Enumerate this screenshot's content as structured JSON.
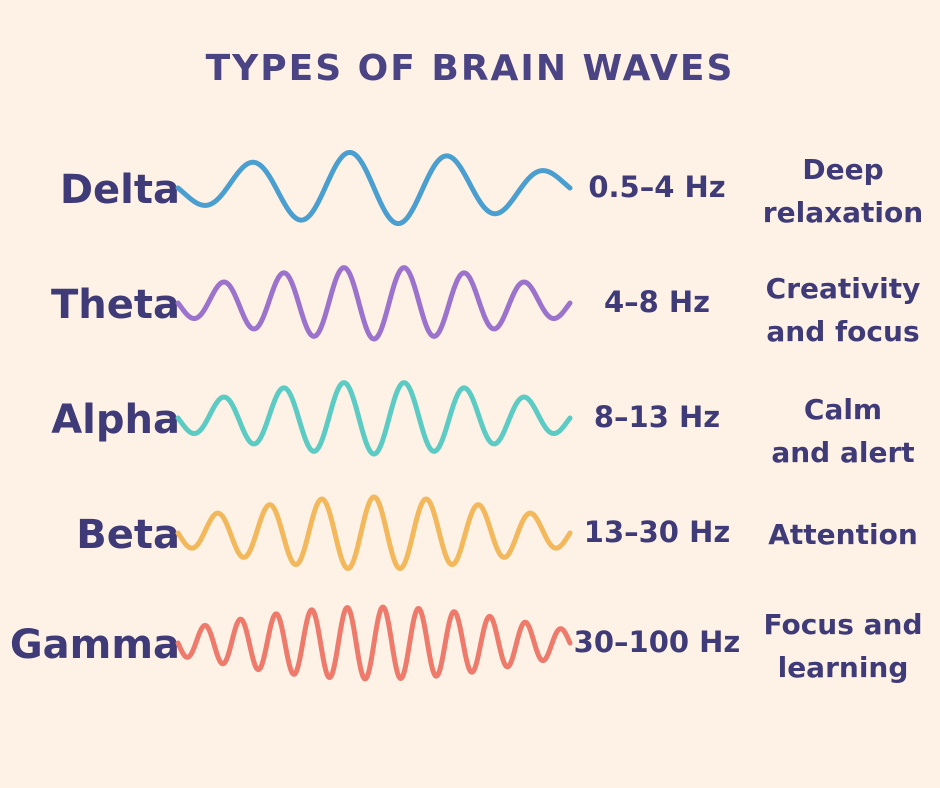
{
  "title": "TYPES OF BRAIN WAVES",
  "waves": [
    {
      "name": "Delta",
      "frequency": "0.5–4 Hz",
      "description": [
        "Deep",
        "relaxation"
      ],
      "color": "#4a9ed0",
      "cycles": 4
    },
    {
      "name": "Theta",
      "frequency": "4–8 Hz",
      "description": [
        "Creativity",
        "and focus"
      ],
      "color": "#9b72cc",
      "cycles": 6.5
    },
    {
      "name": "Alpha",
      "frequency": "8–13 Hz",
      "description": [
        "Calm",
        "and alert"
      ],
      "color": "#5ccbc4",
      "cycles": 6.5
    },
    {
      "name": "Beta",
      "frequency": "13–30 Hz",
      "description": [
        "Attention"
      ],
      "color": "#f3b85c",
      "cycles": 7.5
    },
    {
      "name": "Gamma",
      "frequency": "30–100 Hz",
      "description": [
        "Focus and",
        "learning"
      ],
      "color": "#ee7a6c",
      "cycles": 11
    }
  ]
}
